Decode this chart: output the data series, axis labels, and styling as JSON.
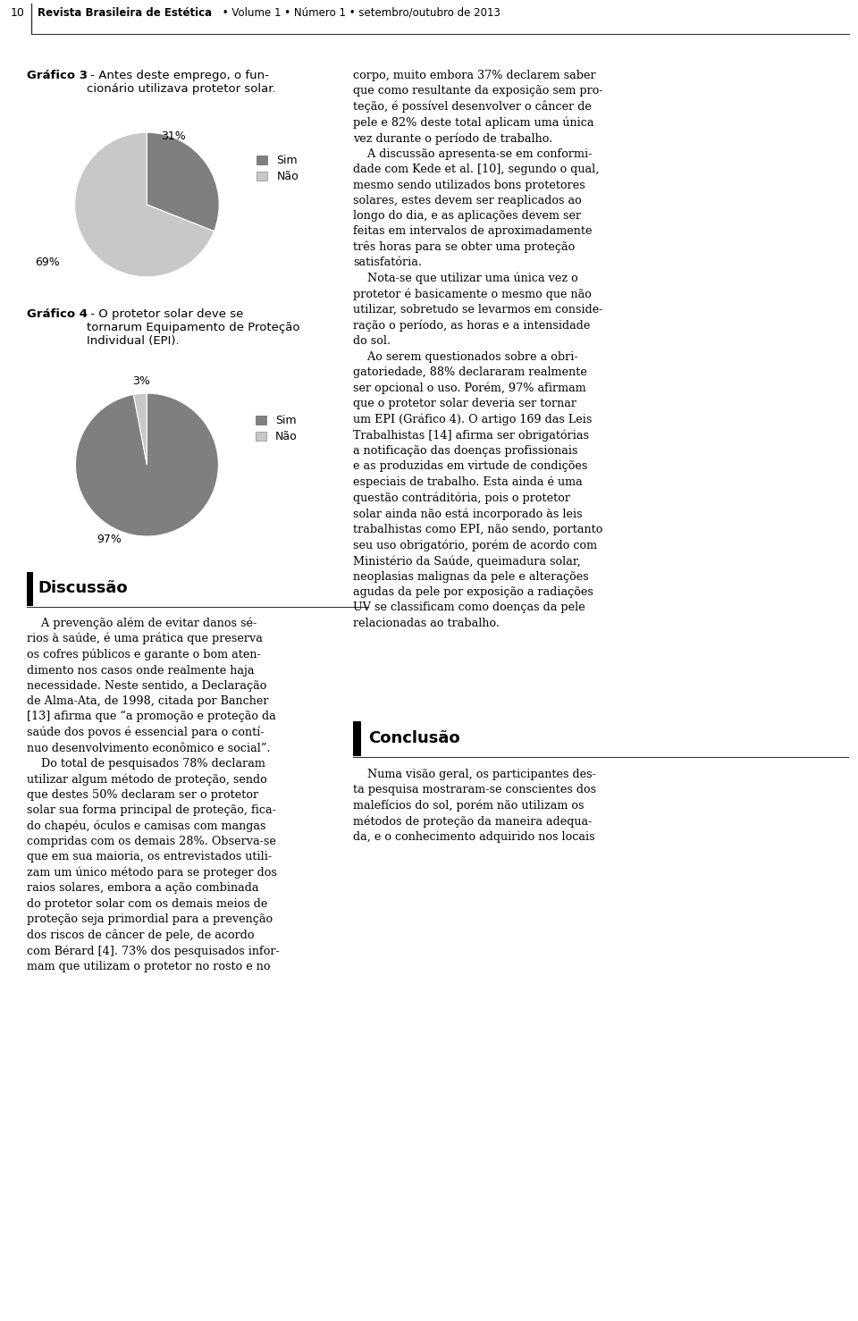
{
  "page_number": "10",
  "header_text_bold": "Revista Brasileira de Estética",
  "header_text_normal": " • Volume 1 • Número 1 • setembro/outubro de 2013",
  "grafico3_title_bold": "Gráfico 3",
  "grafico3_title_normal": " - Antes deste emprego, o fun-\ncionário utilizava protetor solar.",
  "grafico3_values": [
    31,
    69
  ],
  "grafico3_labels": [
    "Sim",
    "Não"
  ],
  "grafico3_colors": [
    "#7f7f7f",
    "#c8c8c8"
  ],
  "grafico3_pct_labels": [
    "31%",
    "69%"
  ],
  "grafico4_title_bold": "Gráfico 4",
  "grafico4_title_normal": " - O protetor solar deve se\ntornarum Equipamento de Proteção\nIndividual (EPI).",
  "grafico4_values": [
    97,
    3
  ],
  "grafico4_labels": [
    "Sim",
    "Não"
  ],
  "grafico4_colors": [
    "#7f7f7f",
    "#c8c8c8"
  ],
  "grafico4_pct_labels": [
    "97%",
    "3%"
  ],
  "discussao_title": "Discussão",
  "discussao_text": "    A prevenção além de evitar danos sé-\nrios à saúde, é uma prática que preserva\nos cofres públicos e garante o bom aten-\ndimento nos casos onde realmente haja\nnecessidade. Neste sentido, a Declaração\nde Alma-Ata, de 1998, citada por Bancher\n[13] afirma que “a promoção e proteção da\nsaúde dos povos é essencial para o contí-\nnuo desenvolvimento econômico e social”.\n    Do total de pesquisados 78% declaram\nutilizar algum método de proteção, sendo\nque destes 50% declaram ser o protetor\nsolar sua forma principal de proteção, fica-\ndo chapéu, óculos e camisas com mangas\ncompridas com os demais 28%. Observa-se\nque em sua maioria, os entrevistados utili-\nzam um único método para se proteger dos\nraios solares, embora a ação combinada\ndo protetor solar com os demais meios de\nproteção seja primordial para a prevenção\ndos riscos de câncer de pele, de acordo\ncom Bérard [4]. 73% dos pesquisados infor-\nmam que utilizam o protetor no rosto e no",
  "right_col_text": "corpo, muito embora 37% declarem saber\nque como resultante da exposição sem pro-\nteção, é possível desenvolver o câncer de\npele e 82% deste total aplicam uma única\nvez durante o período de trabalho.\n    A discussão apresenta-se em conformi-\ndade com Kede et al. [10], segundo o qual,\nmesmo sendo utilizados bons protetores\nsolares, estes devem ser reaplicados ao\nlongo do dia, e as aplicações devem ser\nfeitas em intervalos de aproximadamente\ntrês horas para se obter uma proteção\nsatisfatória.\n    Nota-se que utilizar uma única vez o\nprotetor é basicamente o mesmo que não\nutilizar, sobretudo se levarmos em conside-\nração o período, as horas e a intensidade\ndo sol.\n    Ao serem questionados sobre a obri-\ngatoriedade, 88% declararam realmente\nser opcional o uso. Porém, 97% afirmam\nque o protetor solar deveria ser tornar\num EPI (Gráfico 4). O artigo 169 das Leis\nTrabalhistas [14] afirma ser obrigatórias\na notificação das doenças profissionais\ne as produzidas em virtude de condições\nespeciais de trabalho. Esta ainda é uma\nquestão contráditória, pois o protetor\nsolar ainda não está incorporado às leis\ntrabalhistas como EPI, não sendo, portanto\nseu uso obrigatório, porém de acordo com\nMinistério da Saúde, queimadura solar,\nneoplasias malignas da pele e alterações\nagudas da pele por exposição a radiações\nUV se classificam como doenças da pele\nrelacionadas ao trabalho.",
  "conclusao_title": "Conclusão",
  "conclusao_text": "    Numa visão geral, os participantes des-\nta pesquisa mostraram-se conscientes dos\nmalefícios do sol, porém não utilizam os\nmétodos de proteção da maneira adequa-\nda, e o conhecimento adquirido nos locais",
  "bg_color": "#ffffff",
  "text_color": "#000000"
}
